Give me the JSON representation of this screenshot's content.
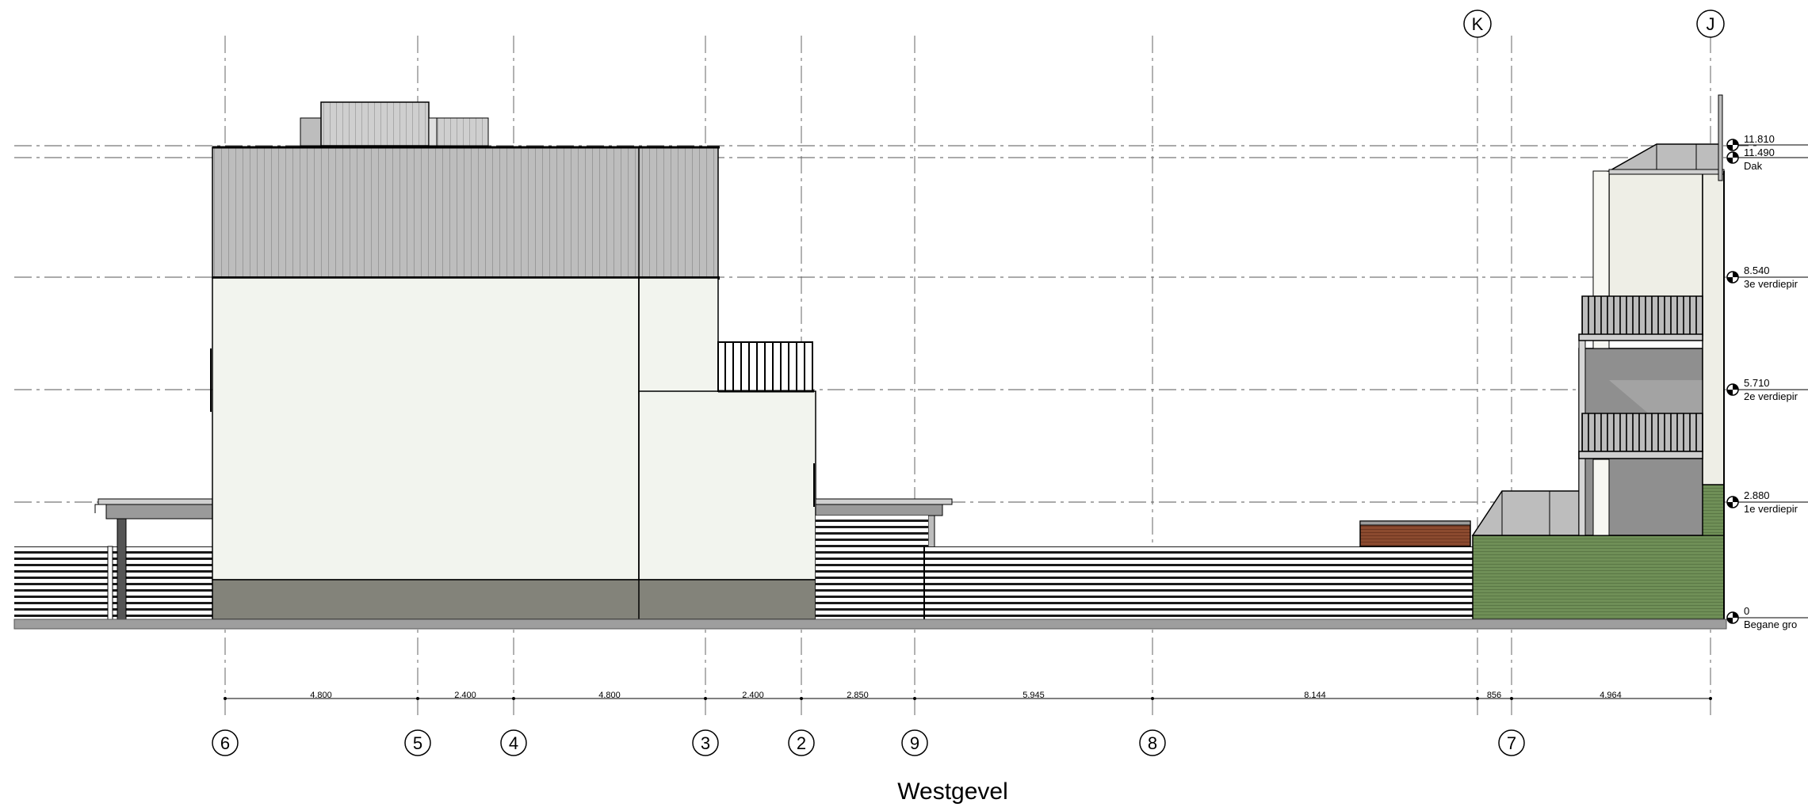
{
  "title": "Westgevel",
  "vertical_gridlines": [
    {
      "label": "6"
    },
    {
      "label": "5"
    },
    {
      "label": "4"
    },
    {
      "label": "3"
    },
    {
      "label": "2"
    },
    {
      "label": "9"
    },
    {
      "label": "8"
    },
    {
      "label": "K"
    },
    {
      "label": "7"
    },
    {
      "label": "J"
    }
  ],
  "dimensions": [
    "4.800",
    "2.400",
    "4.800",
    "2.400",
    "2.850",
    "5.945",
    "8.144",
    "856",
    "4.964"
  ],
  "levels": [
    {
      "value": "11.810",
      "name": ""
    },
    {
      "value": "11.490",
      "name": "Dak"
    },
    {
      "value": "8.540",
      "name": "3e verdiepir"
    },
    {
      "value": "5.710",
      "name": "2e verdiepir"
    },
    {
      "value": "2.880",
      "name": "1e verdiepir"
    },
    {
      "value": "0",
      "name": "Begane gro"
    }
  ],
  "colors": {
    "facade_light": "#f2f4ee",
    "roof_grey": "#bdbdbd",
    "plinth": "#83837a",
    "wood": "#8b4a2f",
    "green": "#6f8f57",
    "ground": "#9e9e9e"
  }
}
